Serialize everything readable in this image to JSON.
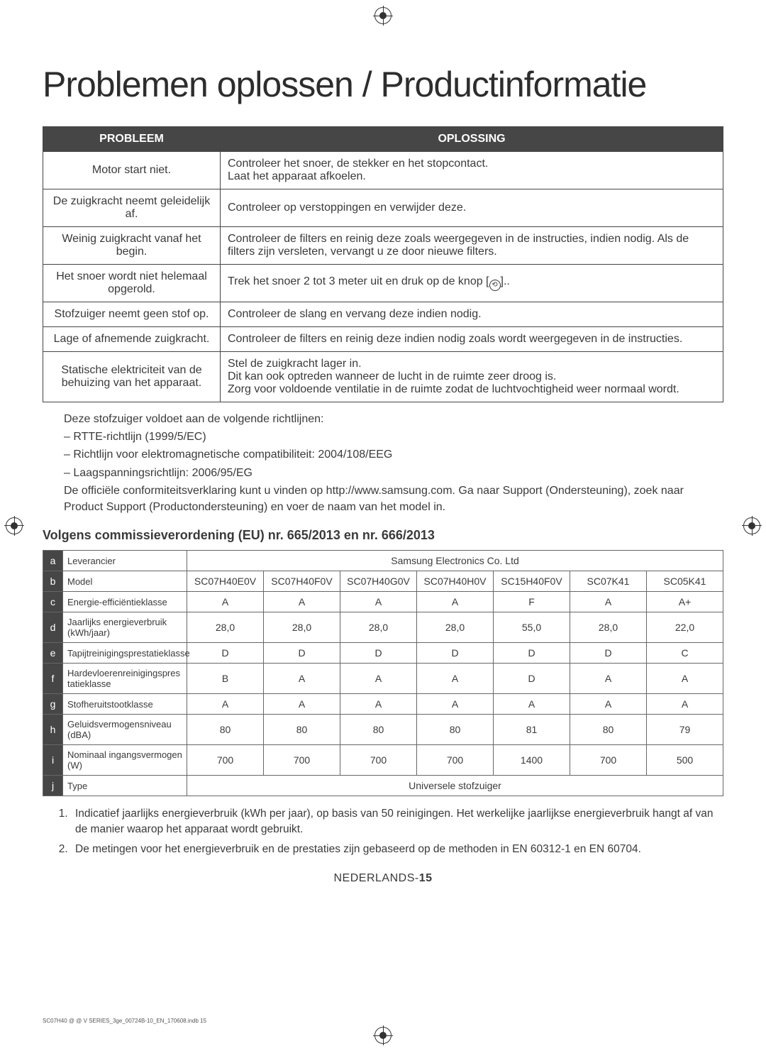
{
  "title": "Problemen oplossen / Productinformatie",
  "trouble_table": {
    "header_problem": "PROBLEEM",
    "header_solution": "OPLOSSING",
    "rows": [
      {
        "problem": "Motor start niet.",
        "solution": "Controleer het snoer, de stekker en het stopcontact.\nLaat het apparaat afkoelen."
      },
      {
        "problem": "De zuigkracht neemt geleidelijk af.",
        "solution": "Controleer op verstoppingen en verwijder deze."
      },
      {
        "problem": "Weinig zuigkracht vanaf het begin.",
        "solution": "Controleer de filters en reinig deze zoals weergegeven in de instructies, indien nodig. Als de filters zijn versleten, vervangt u ze door nieuwe filters."
      },
      {
        "problem": "Het snoer wordt niet helemaal opgerold.",
        "solution": "Trek het snoer 2 tot 3 meter uit en druk op de knop [⟲].."
      },
      {
        "problem": "Stofzuiger neemt geen stof op.",
        "solution": "Controleer de slang en vervang deze indien nodig."
      },
      {
        "problem": "Lage of afnemende zuigkracht.",
        "solution": "Controleer de filters en reinig deze indien nodig zoals wordt weergegeven in de instructies."
      },
      {
        "problem": "Statische elektriciteit van de behuizing van het apparaat.",
        "solution": "Stel de zuigkracht lager in.\nDit kan ook optreden wanneer de lucht in de ruimte zeer droog is.\nZorg voor voldoende ventilatie in de ruimte zodat de luchtvochtigheid weer normaal wordt."
      }
    ]
  },
  "compliance": {
    "intro": "Deze stofzuiger voldoet aan de volgende richtlijnen:",
    "bullets": [
      "RTTE-richtlijn (1999/5/EC)",
      "Richtlijn voor elektromagnetische compatibiliteit: 2004/108/EEG",
      "Laagspanningsrichtlijn: 2006/95/EG"
    ],
    "closing": "De officiële conformiteitsverklaring kunt u vinden op http://www.samsung.com. Ga naar Support (Ondersteuning), zoek naar Product Support (Productondersteuning) en voer de naam van het model in."
  },
  "spec_heading": "Volgens commissieverordening (EU) nr. 665/2013 en nr. 666/2013",
  "spec_table": {
    "row_indices": [
      "a",
      "b",
      "c",
      "d",
      "e",
      "f",
      "g",
      "h",
      "i",
      "j"
    ],
    "rows": [
      {
        "label": "Leverancier",
        "span": "Samsung Electronics Co. Ltd"
      },
      {
        "label": "Model",
        "vals": [
          "SC07H40E0V",
          "SC07H40F0V",
          "SC07H40G0V",
          "SC07H40H0V",
          "SC15H40F0V",
          "SC07K41",
          "SC05K41"
        ]
      },
      {
        "label": "Energie-efficiëntieklasse",
        "vals": [
          "A",
          "A",
          "A",
          "A",
          "F",
          "A",
          "A+"
        ]
      },
      {
        "label": "Jaarlijks energieverbruik (kWh/jaar)",
        "vals": [
          "28,0",
          "28,0",
          "28,0",
          "28,0",
          "55,0",
          "28,0",
          "22,0"
        ]
      },
      {
        "label": "Tapijtreinigingsprestatieklasse",
        "vals": [
          "D",
          "D",
          "D",
          "D",
          "D",
          "D",
          "C"
        ]
      },
      {
        "label": "Hardevloerenreinigingspres tatieklasse",
        "vals": [
          "B",
          "A",
          "A",
          "A",
          "D",
          "A",
          "A"
        ]
      },
      {
        "label": "Stofheruitstootklasse",
        "vals": [
          "A",
          "A",
          "A",
          "A",
          "A",
          "A",
          "A"
        ]
      },
      {
        "label": "Geluidsvermogensniveau (dBA)",
        "vals": [
          "80",
          "80",
          "80",
          "80",
          "81",
          "80",
          "79"
        ]
      },
      {
        "label": "Nominaal ingangsvermogen (W)",
        "vals": [
          "700",
          "700",
          "700",
          "700",
          "1400",
          "700",
          "500"
        ]
      },
      {
        "label": "Type",
        "span": "Universele stofzuiger"
      }
    ]
  },
  "footnotes": [
    "Indicatief jaarlijks energieverbruik (kWh per jaar), op basis van 50 reinigingen. Het werkelijke jaarlijkse energieverbruik hangt af van de manier waarop het apparaat wordt gebruikt.",
    "De metingen voor het energieverbruik en de prestaties zijn gebaseerd op de methoden in EN 60312-1 en EN 60704."
  ],
  "page_footer_lang": "NEDERLANDS-",
  "page_footer_num": "15",
  "imprint": "SC07H40 @ @ V SERIES_3ge_00724B-10_EN_170608.indb   15"
}
